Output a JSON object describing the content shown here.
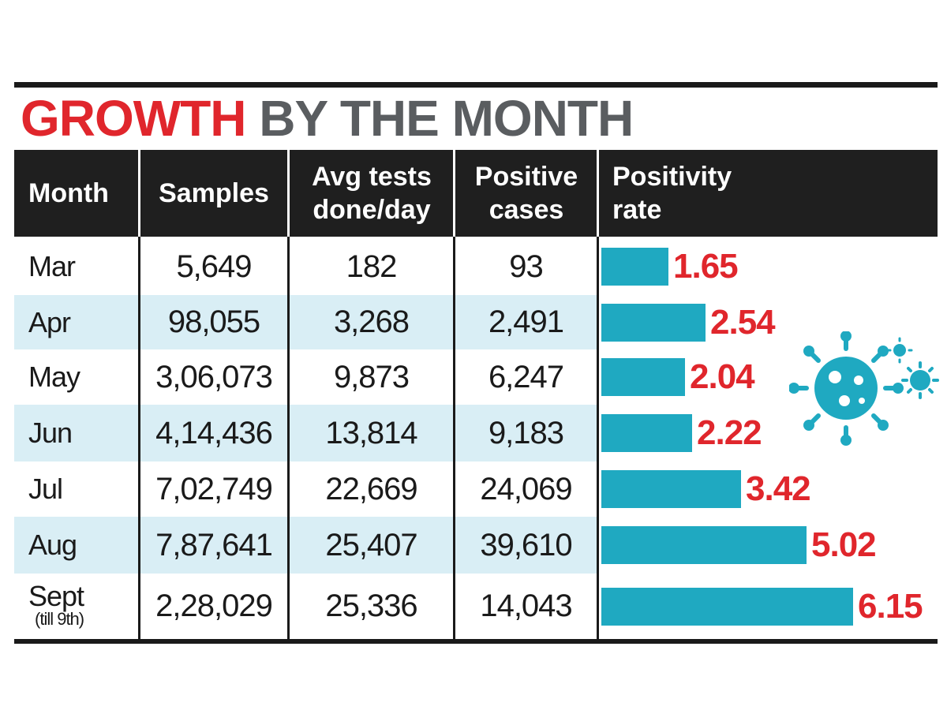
{
  "title": {
    "part_red": "GROWTH",
    "part_gray": "BY THE MONTH"
  },
  "headers": {
    "month": "Month",
    "samples": "Samples",
    "avg_tests_line1": "Avg tests",
    "avg_tests_line2": "done/day",
    "positive_line1": "Positive",
    "positive_line2": "cases",
    "rate_line1": "Positivity",
    "rate_line2": "rate"
  },
  "colors": {
    "accent_red": "#e0262c",
    "bar_teal": "#1fa9c1",
    "header_dark": "#1f1f1f",
    "row_shade": "#d9eef5"
  },
  "icon": "virus-icon",
  "chart_data": {
    "type": "table",
    "title": "GROWTH BY THE MONTH",
    "columns": [
      "Month",
      "Samples",
      "Avg tests done/day",
      "Positive cases",
      "Positivity rate"
    ],
    "rows": [
      {
        "month": "Mar",
        "note": "",
        "samples": "5,649",
        "avg_tests": "182",
        "positive": "93",
        "rate": 1.65,
        "rate_label": "1.65"
      },
      {
        "month": "Apr",
        "note": "",
        "samples": "98,055",
        "avg_tests": "3,268",
        "positive": "2,491",
        "rate": 2.54,
        "rate_label": "2.54"
      },
      {
        "month": "May",
        "note": "",
        "samples": "3,06,073",
        "avg_tests": "9,873",
        "positive": "6,247",
        "rate": 2.04,
        "rate_label": "2.04"
      },
      {
        "month": "Jun",
        "note": "",
        "samples": "4,14,436",
        "avg_tests": "13,814",
        "positive": "9,183",
        "rate": 2.22,
        "rate_label": "2.22"
      },
      {
        "month": "Jul",
        "note": "",
        "samples": "7,02,749",
        "avg_tests": "22,669",
        "positive": "24,069",
        "rate": 3.42,
        "rate_label": "3.42"
      },
      {
        "month": "Aug",
        "note": "",
        "samples": "7,87,641",
        "avg_tests": "25,407",
        "positive": "39,610",
        "rate": 5.02,
        "rate_label": "5.02"
      },
      {
        "month": "Sept",
        "note": "(till 9th)",
        "samples": "2,28,029",
        "avg_tests": "25,336",
        "positive": "14,043",
        "rate": 6.15,
        "rate_label": "6.15"
      }
    ],
    "bar_series": {
      "name": "Positivity rate",
      "type": "bar",
      "orientation": "horizontal"
    }
  }
}
